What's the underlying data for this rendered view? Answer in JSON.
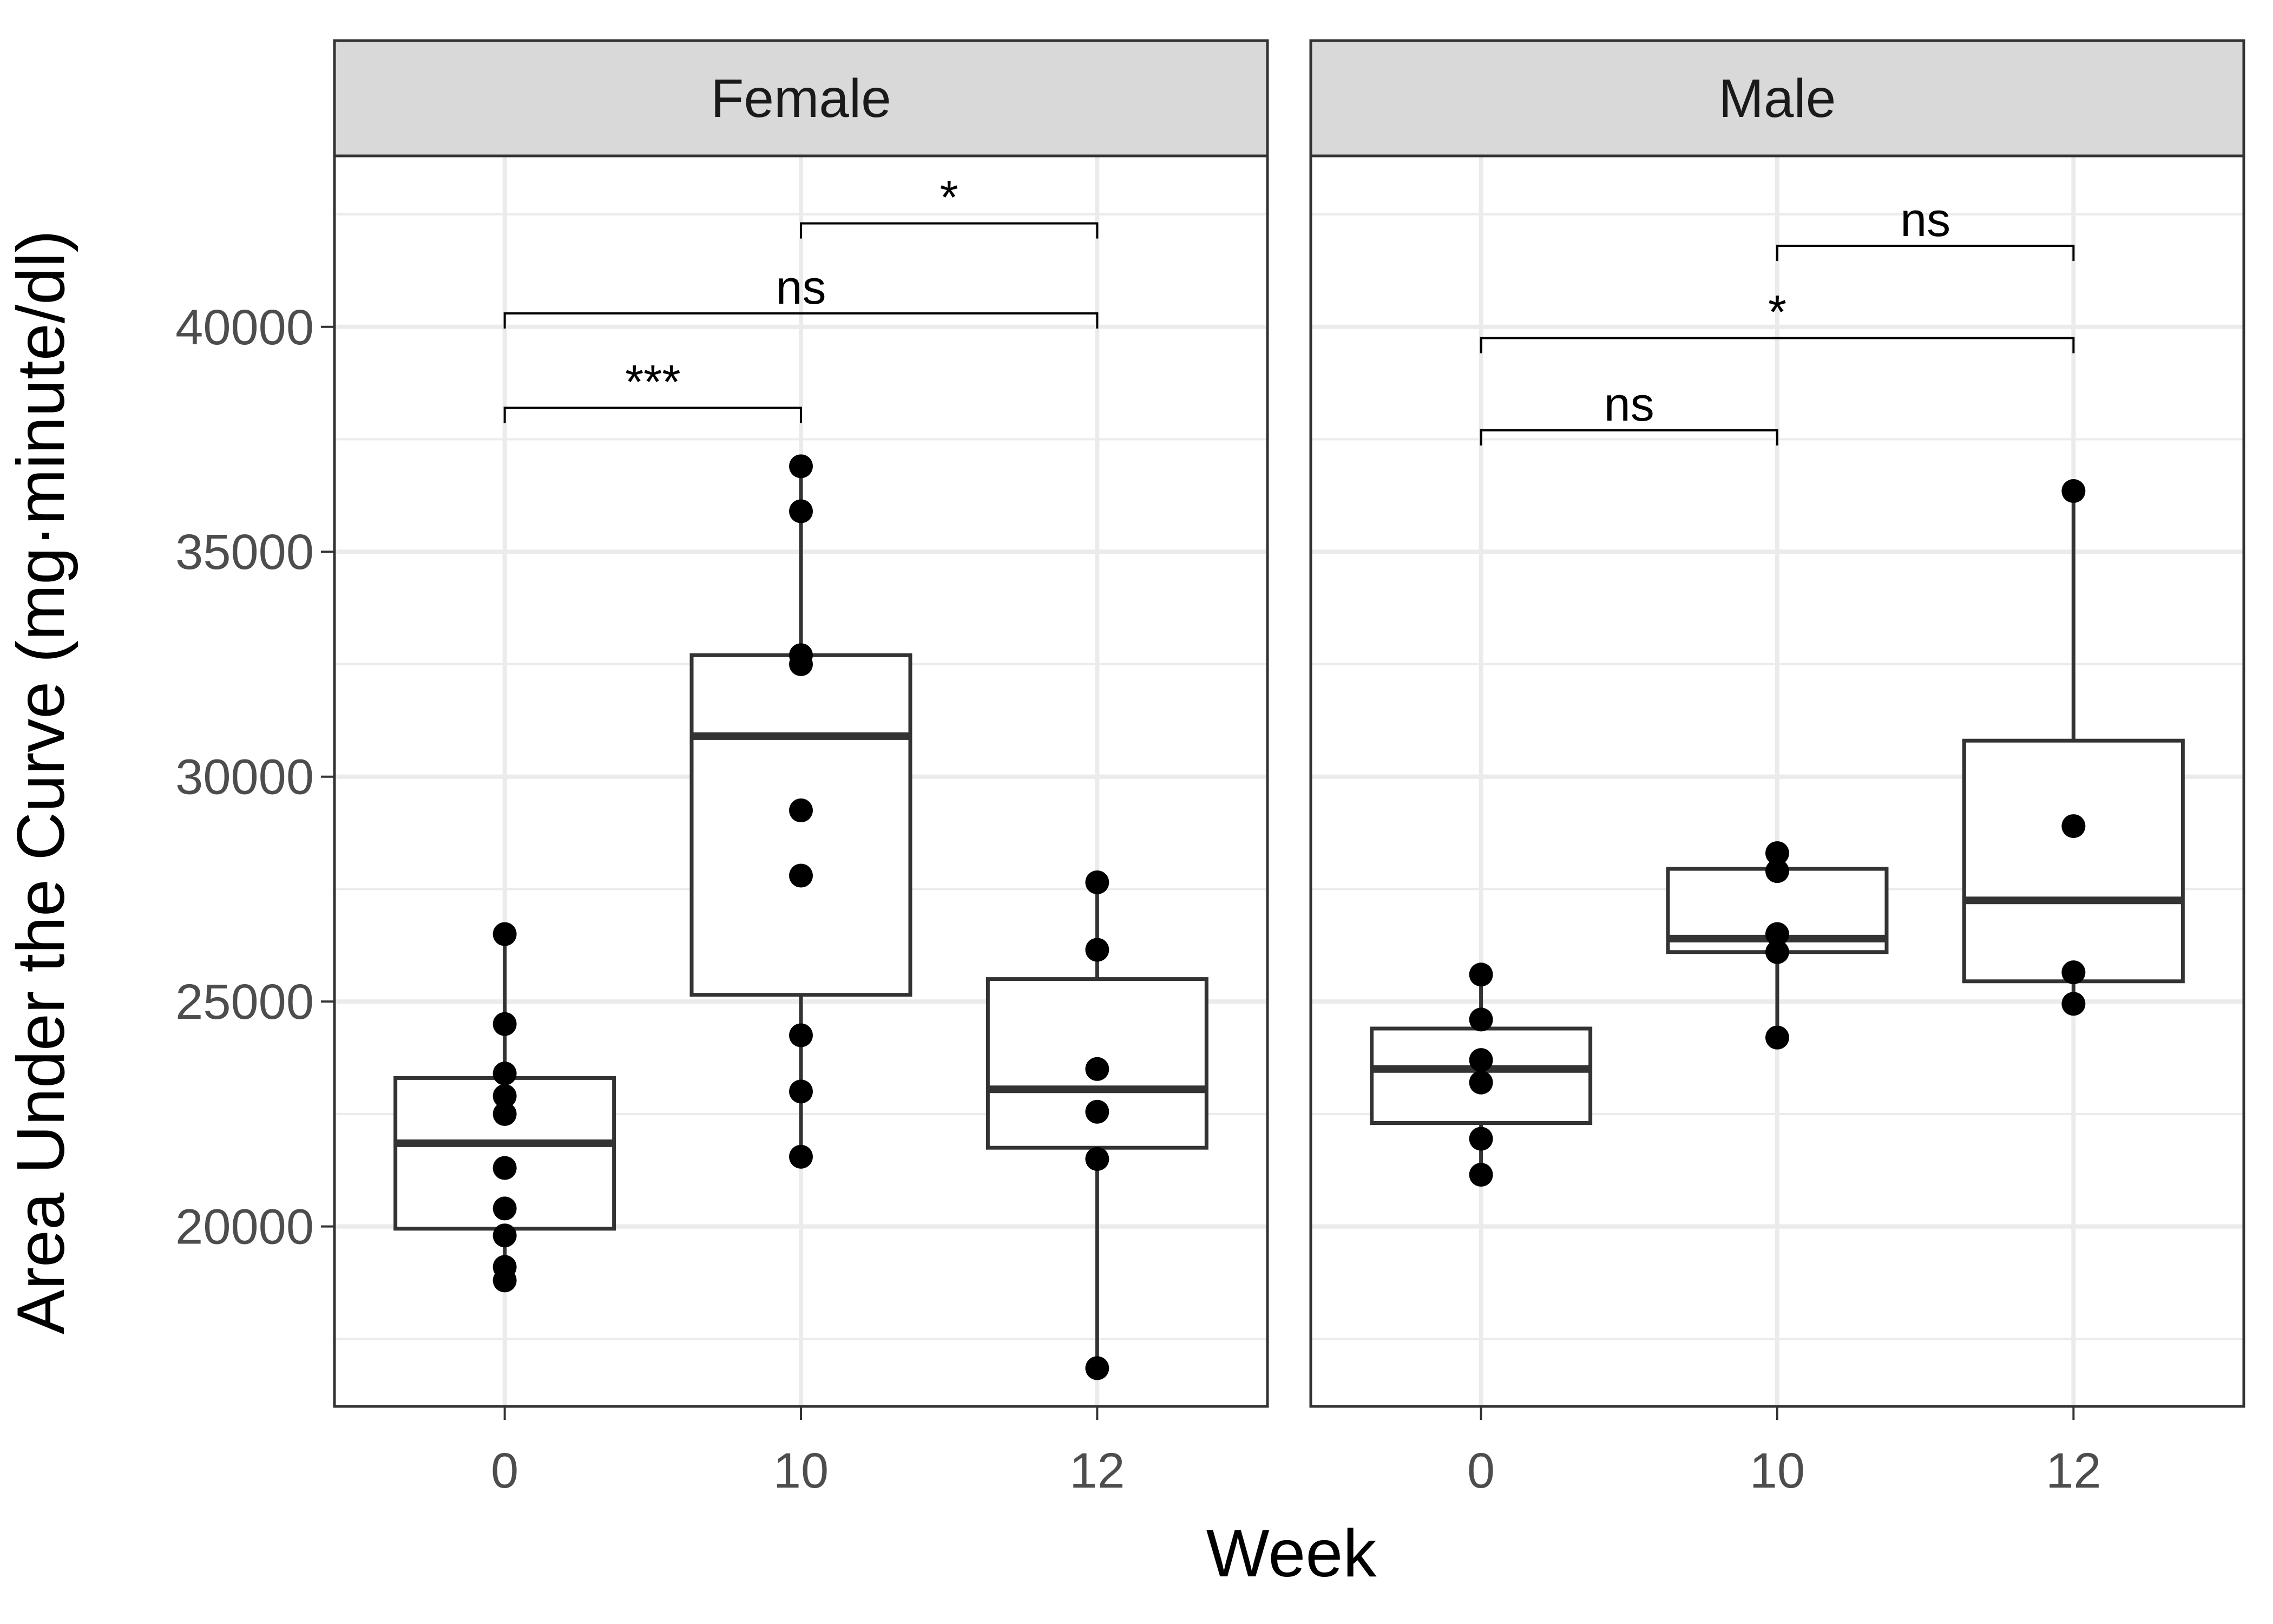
{
  "chart_data": {
    "type": "box",
    "xlabel": "Week",
    "ylabel": "Area Under the Curve (mg·minute/dl)",
    "categories": [
      "0",
      "10",
      "12"
    ],
    "y_ticks": [
      "20000",
      "25000",
      "30000",
      "35000",
      "40000"
    ],
    "ylim": [
      16000,
      43800
    ],
    "grid": true,
    "colors": {
      "strip_fill": "#d9d9d9",
      "box_stroke": "#333333",
      "point": "#000000",
      "grid": "#ebebeb"
    },
    "panels": [
      {
        "label": "Female",
        "boxes": [
          {
            "category": "0",
            "min": 18800,
            "q1": 19950,
            "median": 21850,
            "q3": 23300,
            "max": 26500,
            "points": [
              26500,
              24500,
              23400,
              22900,
              22500,
              21300,
              20400,
              19800,
              19100,
              18800
            ]
          },
          {
            "category": "10",
            "min": 21550,
            "q1": 25150,
            "median": 30900,
            "q3": 32700,
            "max": 36900,
            "points": [
              36900,
              35900,
              32700,
              32500,
              29250,
              27800,
              24250,
              23000,
              21550
            ]
          },
          {
            "category": "12",
            "min": 16850,
            "q1": 21750,
            "median": 23050,
            "q3": 25500,
            "max": 27650,
            "points": [
              27650,
              26150,
              23500,
              22550,
              21500,
              16850
            ]
          }
        ],
        "comparisons": [
          {
            "from": "0",
            "to": "10",
            "label": "***",
            "y": 38200
          },
          {
            "from": "0",
            "to": "12",
            "label": "ns",
            "y": 40300
          },
          {
            "from": "10",
            "to": "12",
            "label": "*",
            "y": 42300
          }
        ]
      },
      {
        "label": "Male",
        "boxes": [
          {
            "category": "0",
            "min": 21150,
            "q1": 22300,
            "median": 23500,
            "q3": 24400,
            "max": 25600,
            "points": [
              25600,
              24600,
              23700,
              23200,
              21950,
              21150
            ]
          },
          {
            "category": "10",
            "min": 24200,
            "q1": 26100,
            "median": 26400,
            "q3": 27950,
            "max": 28300,
            "points": [
              28300,
              27900,
              26500,
              26100,
              24200
            ]
          },
          {
            "category": "12",
            "min": 24950,
            "q1": 25450,
            "median": 27250,
            "q3": 30800,
            "max": 36350,
            "points": [
              36350,
              28900,
              25650,
              24950
            ]
          }
        ],
        "comparisons": [
          {
            "from": "0",
            "to": "10",
            "label": "ns",
            "y": 37700
          },
          {
            "from": "0",
            "to": "12",
            "label": "*",
            "y": 39750
          },
          {
            "from": "10",
            "to": "12",
            "label": "ns",
            "y": 41800
          }
        ]
      }
    ]
  }
}
